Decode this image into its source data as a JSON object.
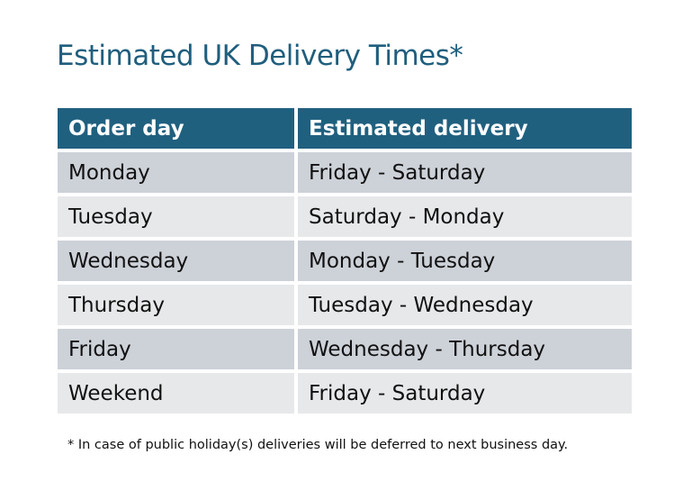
{
  "title": "Estimated UK Delivery Times*",
  "table": {
    "headers": [
      "Order day",
      "Estimated delivery"
    ],
    "rows": [
      [
        "Monday",
        "Friday - Saturday"
      ],
      [
        "Tuesday",
        "Saturday - Monday"
      ],
      [
        "Wednesday",
        "Monday - Tuesday"
      ],
      [
        "Thursday",
        "Tuesday - Wednesday"
      ],
      [
        "Friday",
        "Wednesday - Thursday"
      ],
      [
        "Weekend",
        "Friday - Saturday"
      ]
    ]
  },
  "footnote": "* In case of public holiday(s) deliveries will be deferred to next business day.",
  "colors": {
    "header": "#20607f",
    "title": "#1f5e7d",
    "row_odd": "#cdd1d8",
    "row_even": "#e6e8ea"
  }
}
